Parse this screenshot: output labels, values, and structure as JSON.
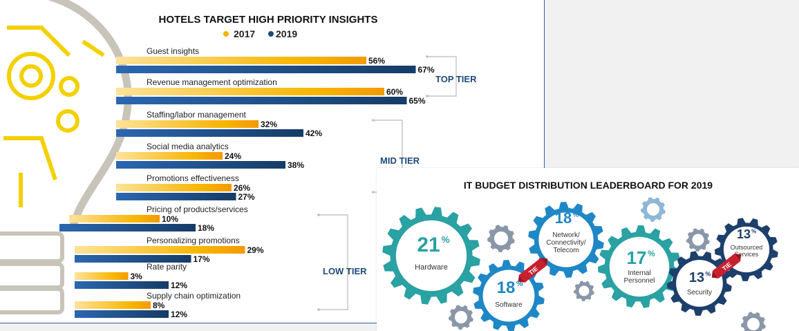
{
  "colors": {
    "y2017": "#f7b500",
    "y2019": "#1d4a7a",
    "tier": "#1d4a7a",
    "teal": "#2aa1a3",
    "blue": "#1f87c6",
    "navy": "#1d3f6b",
    "gray": "#8a97a8",
    "red": "#c8202f"
  },
  "chart_data": [
    {
      "type": "bar",
      "orientation": "horizontal",
      "title": "HOTELS TARGET HIGH PRIORITY INSIGHTS",
      "legend": [
        "2017",
        "2019"
      ],
      "categories": [
        "Guest insights",
        "Revenue management optimization",
        "Staffing/labor management",
        "Social media analytics",
        "Promotions effectiveness",
        "Pricing of products/services",
        "Personalizing promotions",
        "Rate parity",
        "Supply chain optimization"
      ],
      "series": [
        {
          "name": "2017",
          "values": [
            56,
            60,
            32,
            24,
            26,
            10,
            29,
            3,
            8
          ]
        },
        {
          "name": "2019",
          "values": [
            67,
            65,
            42,
            38,
            27,
            18,
            17,
            12,
            12
          ]
        }
      ],
      "value_labels": {
        "2017": [
          "56%",
          "60%",
          "32%",
          "24%",
          "26%",
          "10%",
          "29%",
          "3%",
          "8%"
        ],
        "2019": [
          "67%",
          "65%",
          "42%",
          "38%",
          "27%",
          "18%",
          "17%",
          "12%",
          "12%"
        ]
      },
      "tiers": [
        {
          "label": "TOP TIER",
          "from": 0,
          "to": 1
        },
        {
          "label": "MID TIER",
          "from": 2,
          "to": 4
        },
        {
          "label": "LOW TIER",
          "from": 5,
          "to": 8
        }
      ]
    },
    {
      "type": "infographic",
      "title": "IT BUDGET DISTRIBUTION LEADERBOARD FOR 2019",
      "items": [
        {
          "value": "21",
          "unit": "%",
          "label": [
            "Hardware"
          ],
          "color": "teal"
        },
        {
          "value": "18",
          "unit": "%",
          "label": [
            "Software"
          ],
          "color": "blue"
        },
        {
          "value": "18",
          "unit": "%",
          "label": [
            "Network/",
            "Connectivity/",
            "Telecom"
          ],
          "color": "blue"
        },
        {
          "value": "17",
          "unit": "%",
          "label": [
            "Internal",
            "Personnel"
          ],
          "color": "teal"
        },
        {
          "value": "13",
          "unit": "%",
          "label": [
            "Security"
          ],
          "color": "navy"
        },
        {
          "value": "13",
          "unit": "%",
          "label": [
            "Outsourced",
            "Services"
          ],
          "color": "navy"
        }
      ],
      "tie_label": "TIE"
    }
  ]
}
